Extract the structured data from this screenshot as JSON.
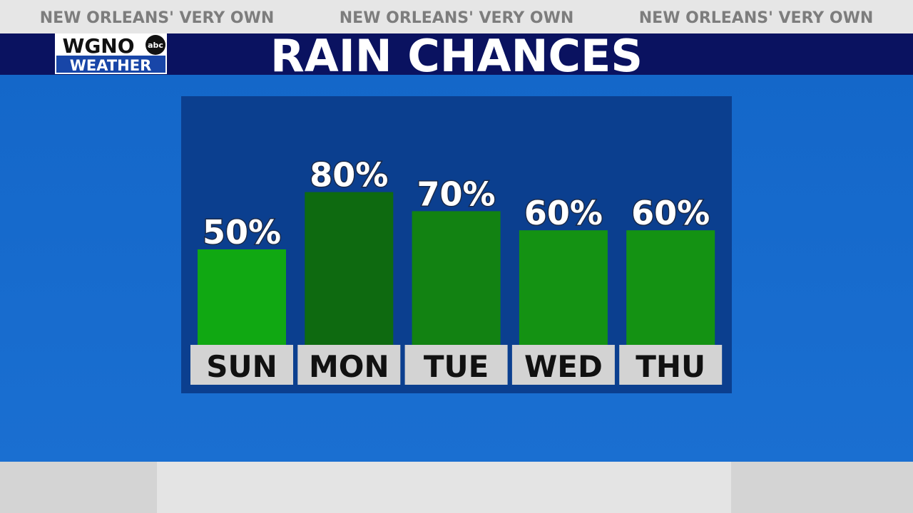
{
  "banner": [
    "NEW ORLEANS' VERY OWN",
    "NEW ORLEANS' VERY OWN",
    "NEW ORLEANS' VERY OWN"
  ],
  "logo": {
    "station": "WGNO",
    "network": "abc",
    "label": "WEATHER"
  },
  "chart_data": {
    "type": "bar",
    "title": "RAIN CHANCES",
    "categories": [
      "SUN",
      "MON",
      "TUE",
      "WED",
      "THU"
    ],
    "values": [
      50,
      80,
      70,
      60,
      60
    ],
    "value_labels": [
      "50%",
      "80%",
      "70%",
      "60%",
      "60%"
    ],
    "colors": [
      "#10a812",
      "#0e6a10",
      "#128212",
      "#149213",
      "#149213"
    ]
  }
}
